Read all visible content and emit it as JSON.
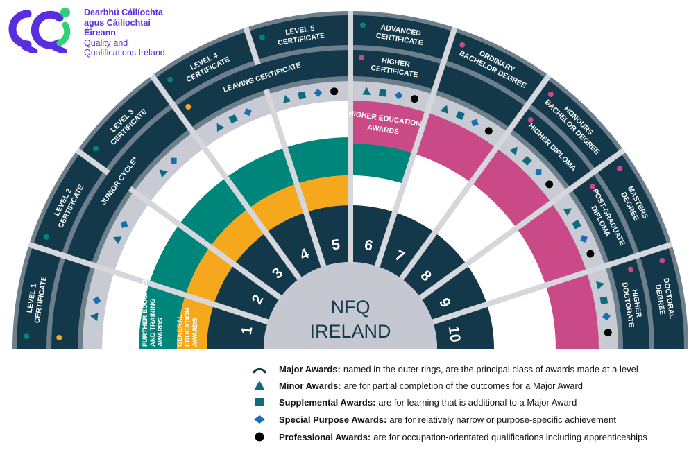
{
  "logo": {
    "lines": [
      "Dearbhú Cáilíochta",
      "agus Cáilíochtaí Éireann",
      "Quality and",
      "Qualifications Ireland"
    ]
  },
  "center": {
    "line1": "NFQ",
    "line2": "IRELAND"
  },
  "colors": {
    "dark": "#12384a",
    "ring_border": "#6c7f8b",
    "symbol_ring": "#c8cbd3",
    "spoke": "#d5d7dc",
    "center": "#c5c8d0",
    "further_education": "#00857a",
    "general_education": "#f5a81c",
    "higher_education": "#c94a86",
    "triangle": "#0f6a80",
    "square": "#0f6a80",
    "diamond": "#1a6fb3",
    "circle": "#000000",
    "logo_purple": "#5a2ee0",
    "logo_green": "#2fd07a"
  },
  "levels": [
    {
      "number": "1",
      "outer_award": [
        "LEVEL 1",
        "CERTIFICATE"
      ],
      "outer_dot": "green",
      "symbols": [
        "triangle",
        "diamond"
      ]
    },
    {
      "number": "2",
      "outer_award": [
        "LEVEL 2",
        "CERTIFICATE"
      ],
      "outer_dot": "green",
      "symbols": [
        "triangle",
        "diamond"
      ]
    },
    {
      "number": "3",
      "outer_award": [
        "LEVEL 3",
        "CERTIFICATE"
      ],
      "outer_dot": "green",
      "symbols": [
        "triangle",
        "diamond"
      ]
    },
    {
      "number": "4",
      "outer_award": [
        "LEVEL 4",
        "CERTIFICATE"
      ],
      "outer_dot": "green",
      "symbols": [
        "triangle",
        "square",
        "diamond"
      ]
    },
    {
      "number": "5",
      "outer_award": [
        "LEVEL 5",
        "CERTIFICATE"
      ],
      "outer_dot": "green",
      "symbols": [
        "triangle",
        "square",
        "diamond",
        "circle"
      ]
    },
    {
      "number": "6",
      "outer_award": [
        "ADVANCED",
        "CERTIFICATE"
      ],
      "outer_dot": "green",
      "symbols": [
        "triangle",
        "square",
        "diamond",
        "circle"
      ]
    },
    {
      "number": "7",
      "outer_award": [
        "ORDINARY",
        "BACHELOR DEGREE"
      ],
      "outer_dot": "pink",
      "symbols": [
        "triangle",
        "square",
        "diamond",
        "circle"
      ]
    },
    {
      "number": "8",
      "outer_award": [
        "HONOURS",
        "BACHELOR DEGREE"
      ],
      "outer_dot": "pink",
      "symbols": [
        "triangle",
        "square",
        "diamond",
        "circle"
      ]
    },
    {
      "number": "9",
      "outer_award": [
        "MASTERS",
        "DEGREE"
      ],
      "outer_dot": "pink",
      "symbols": [
        "triangle",
        "square",
        "diamond",
        "circle"
      ]
    },
    {
      "number": "10",
      "outer_award": [
        "DOCTORAL",
        "DEGREE"
      ],
      "outer_dot": "pink",
      "symbols": [
        "triangle",
        "square",
        "diamond",
        "circle"
      ]
    }
  ],
  "inner_ring": [
    {
      "from_level": 1,
      "to_level": 1,
      "award": [],
      "dot": "orange"
    },
    {
      "from_level": 2,
      "to_level": 3,
      "award": [
        "JUNIOR CYCLE*"
      ],
      "dot": ""
    },
    {
      "from_level": 4,
      "to_level": 5,
      "award": [
        "LEAVING CERTIFICATE"
      ],
      "dot": "orange"
    },
    {
      "from_level": 6,
      "to_level": 6,
      "award": [
        "HIGHER",
        "CERTIFICATE"
      ],
      "dot": "pink"
    },
    {
      "from_level": 7,
      "to_level": 7,
      "award": [],
      "dot": ""
    },
    {
      "from_level": 8,
      "to_level": 8,
      "award": [
        "HIGHER DIPLOMA"
      ],
      "dot": "pink"
    },
    {
      "from_level": 9,
      "to_level": 9,
      "award": [
        "POST-GRADUATE",
        "DIPLOMA"
      ],
      "dot": "pink"
    },
    {
      "from_level": 10,
      "to_level": 10,
      "award": [
        "HIGHER",
        "DOCTORATE"
      ],
      "dot": "pink"
    }
  ],
  "award_bands": [
    {
      "key": "further_education",
      "label": [
        "FURTHER EDUCATION",
        "AND TRAINING",
        "AWARDS"
      ],
      "from_level": 1,
      "to_level": 6
    },
    {
      "key": "general_education",
      "label": [
        "GENERAL",
        "EDUCATION",
        "AWARDS"
      ],
      "from_level": 1,
      "to_level": 5
    },
    {
      "key": "higher_education",
      "label": [
        "HIGHER EDUCATION",
        "AWARDS"
      ],
      "from_level": 6,
      "to_level": 10
    }
  ],
  "legend": [
    {
      "icon": "arc",
      "title": "Major Awards:",
      "text": "named in the outer rings, are the principal class of awards made at a level"
    },
    {
      "icon": "triangle",
      "title": "Minor Awards:",
      "text": "are for partial completion of the outcomes for a Major Award"
    },
    {
      "icon": "square",
      "title": "Supplemental Awards:",
      "text": "are for learning that is additional to a Major Award"
    },
    {
      "icon": "diamond",
      "title": "Special Purpose Awards:",
      "text": "are for relatively narrow or purpose-specific achievement"
    },
    {
      "icon": "circle",
      "title": "Professional Awards:",
      "text": "are for occupation-orientated qualifications including apprenticeships"
    }
  ]
}
